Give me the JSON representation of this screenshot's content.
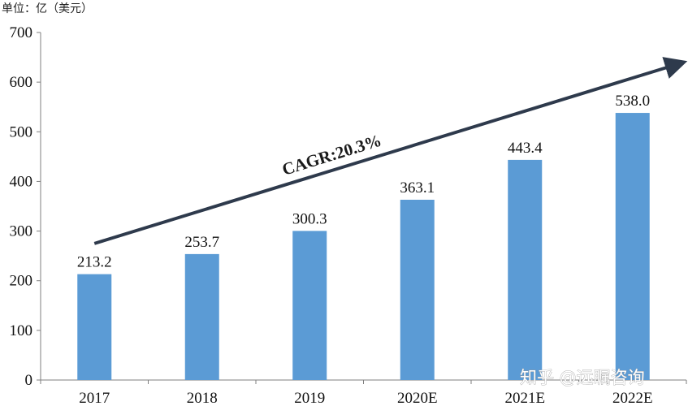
{
  "chart_data": {
    "type": "bar",
    "unit_label": "单位：亿（美元）",
    "categories": [
      "2017",
      "2018",
      "2019",
      "2020E",
      "2021E",
      "2022E"
    ],
    "values": [
      213.2,
      253.7,
      300.3,
      363.1,
      443.4,
      538.0
    ],
    "value_labels": [
      "213.2",
      "253.7",
      "300.3",
      "363.1",
      "443.4",
      "538.0"
    ],
    "yticks": [
      "0",
      "100",
      "200",
      "300",
      "400",
      "500",
      "600",
      "700"
    ],
    "ylim": [
      0,
      700
    ],
    "annotation": {
      "text": "CAGR:20.3%",
      "arrow_from": [
        0,
        275
      ],
      "arrow_to": [
        5.4,
        635
      ]
    },
    "bar_color": "#5b9bd5",
    "arrow_color": "#2e3a4c",
    "grid": false
  },
  "watermark": "知乎 @远瞩咨询"
}
